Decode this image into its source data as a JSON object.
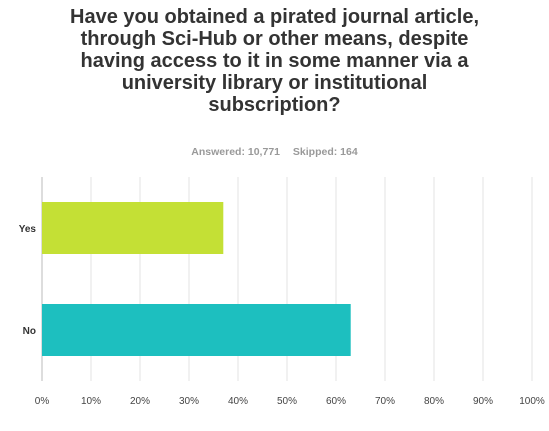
{
  "title_lines": [
    "Have you obtained a pirated journal article,",
    "through Sci-Hub or other means, despite",
    "having access to it in some manner via a",
    "university library or institutional",
    "subscription?"
  ],
  "answered_label": "Answered: 10,771",
  "skipped_label": "Skipped: 164",
  "colors": {
    "yes": "#c4e035",
    "no": "#1dbfbf",
    "grid": "#e3e3e3",
    "axis": "#bbbbbb"
  },
  "chart_data": {
    "type": "bar",
    "orientation": "horizontal",
    "title": "Have you obtained a pirated journal article, through Sci-Hub or other means, despite having access to it in some manner via a university library or institutional subscription?",
    "categories": [
      "Yes",
      "No"
    ],
    "values": [
      37,
      63
    ],
    "unit": "%",
    "xlim": [
      0,
      100
    ],
    "xticks": [
      "0%",
      "10%",
      "20%",
      "30%",
      "40%",
      "50%",
      "60%",
      "70%",
      "80%",
      "90%",
      "100%"
    ],
    "grid": true
  }
}
